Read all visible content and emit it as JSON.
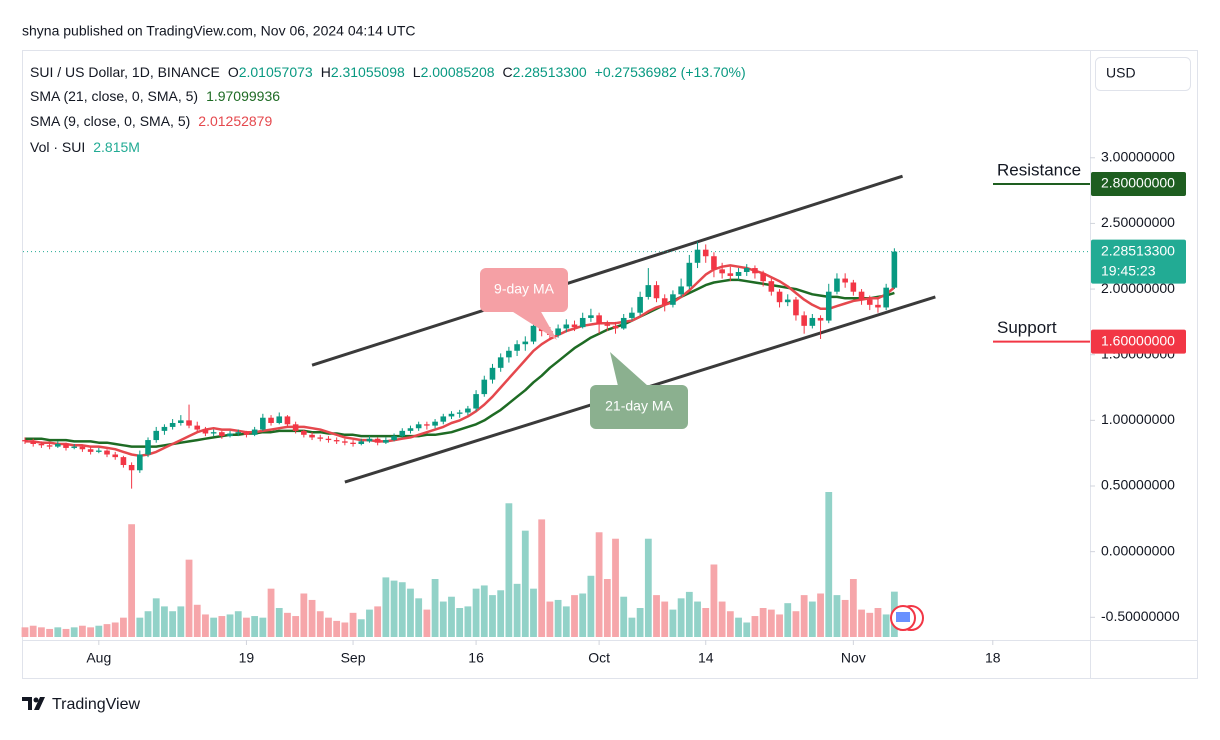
{
  "header": "shyna published on TradingView.com, Nov 06, 2024 04:14 UTC",
  "footer": "TradingView",
  "currency_button": "USD",
  "legend": {
    "symbol": "SUI / US Dollar, 1D, BINANCE",
    "ohlc": [
      {
        "prefix": "O",
        "value": "2.01057073"
      },
      {
        "prefix": "H",
        "value": "2.31055098"
      },
      {
        "prefix": "L",
        "value": "2.00085208"
      },
      {
        "prefix": "C",
        "value": "2.28513300"
      }
    ],
    "change": "+0.27536982 (+13.70%)"
  },
  "chart_data": {
    "type": "candlestick",
    "up_color": "#089981",
    "down_color": "#f23645",
    "x": [
      "Jul 23",
      "Jul 24",
      "Jul 25",
      "Jul 26",
      "Jul 27",
      "Jul 28",
      "Jul 29",
      "Jul 30",
      "Jul 31",
      "Aug 1",
      "Aug 2",
      "Aug 3",
      "Aug 4",
      "Aug 5",
      "Aug 6",
      "Aug 7",
      "Aug 8",
      "Aug 9",
      "Aug 10",
      "Aug 11",
      "Aug 12",
      "Aug 13",
      "Aug 14",
      "Aug 15",
      "Aug 16",
      "Aug 17",
      "Aug 18",
      "Aug 19",
      "Aug 20",
      "Aug 21",
      "Aug 22",
      "Aug 23",
      "Aug 24",
      "Aug 25",
      "Aug 26",
      "Aug 27",
      "Aug 28",
      "Aug 29",
      "Aug 30",
      "Aug 31",
      "Sep 1",
      "Sep 2",
      "Sep 3",
      "Sep 4",
      "Sep 5",
      "Sep 6",
      "Sep 7",
      "Sep 8",
      "Sep 9",
      "Sep 10",
      "Sep 11",
      "Sep 12",
      "Sep 13",
      "Sep 14",
      "Sep 15",
      "Sep 16",
      "Sep 17",
      "Sep 18",
      "Sep 19",
      "Sep 20",
      "Sep 21",
      "Sep 22",
      "Sep 23",
      "Sep 24",
      "Sep 25",
      "Sep 26",
      "Sep 27",
      "Sep 28",
      "Sep 29",
      "Sep 30",
      "Oct 1",
      "Oct 2",
      "Oct 3",
      "Oct 4",
      "Oct 5",
      "Oct 6",
      "Oct 7",
      "Oct 8",
      "Oct 9",
      "Oct 10",
      "Oct 11",
      "Oct 12",
      "Oct 13",
      "Oct 14",
      "Oct 15",
      "Oct 16",
      "Oct 17",
      "Oct 18",
      "Oct 19",
      "Oct 20",
      "Oct 21",
      "Oct 22",
      "Oct 23",
      "Oct 24",
      "Oct 25",
      "Oct 26",
      "Oct 27",
      "Oct 28",
      "Oct 29",
      "Oct 30",
      "Oct 31",
      "Nov 1",
      "Nov 2",
      "Nov 3",
      "Nov 4",
      "Nov 5",
      "Nov 6"
    ],
    "open": [
      0.85,
      0.84,
      0.82,
      0.81,
      0.8,
      0.82,
      0.79,
      0.8,
      0.78,
      0.76,
      0.77,
      0.74,
      0.72,
      0.66,
      0.62,
      0.74,
      0.85,
      0.92,
      0.95,
      0.98,
      1.0,
      0.96,
      0.93,
      0.9,
      0.91,
      0.88,
      0.9,
      0.91,
      0.89,
      0.93,
      1.02,
      0.98,
      1.03,
      0.97,
      0.92,
      0.89,
      0.87,
      0.86,
      0.85,
      0.84,
      0.83,
      0.82,
      0.84,
      0.86,
      0.83,
      0.85,
      0.88,
      0.92,
      0.94,
      0.97,
      0.96,
      0.99,
      1.03,
      1.05,
      1.06,
      1.09,
      1.2,
      1.31,
      1.4,
      1.48,
      1.53,
      1.58,
      1.6,
      1.72,
      1.68,
      1.65,
      1.7,
      1.73,
      1.71,
      1.78,
      1.8,
      1.73,
      1.72,
      1.7,
      1.78,
      1.82,
      1.94,
      2.03,
      1.93,
      1.88,
      1.96,
      2.02,
      2.2,
      2.3,
      2.25,
      2.15,
      2.12,
      2.1,
      2.13,
      2.16,
      2.12,
      2.06,
      1.98,
      1.9,
      1.92,
      1.8,
      1.72,
      1.78,
      1.76,
      1.98,
      2.08,
      2.05,
      1.98,
      1.92,
      1.88,
      1.86,
      2.01057073
    ],
    "high": [
      0.87,
      0.86,
      0.84,
      0.83,
      0.84,
      0.83,
      0.82,
      0.81,
      0.8,
      0.79,
      0.78,
      0.76,
      0.73,
      0.68,
      0.77,
      0.87,
      0.95,
      0.97,
      1.01,
      1.04,
      1.12,
      0.99,
      0.95,
      0.93,
      0.92,
      0.92,
      0.93,
      0.92,
      0.95,
      1.05,
      1.04,
      1.06,
      1.04,
      0.99,
      0.93,
      0.91,
      0.89,
      0.88,
      0.87,
      0.86,
      0.85,
      0.86,
      0.88,
      0.87,
      0.87,
      0.9,
      0.94,
      0.96,
      0.99,
      0.99,
      1.01,
      1.05,
      1.07,
      1.08,
      1.11,
      1.23,
      1.34,
      1.43,
      1.51,
      1.56,
      1.61,
      1.64,
      1.76,
      1.75,
      1.71,
      1.73,
      1.77,
      1.76,
      1.82,
      1.85,
      1.82,
      1.76,
      1.75,
      1.81,
      1.86,
      1.98,
      2.16,
      2.06,
      1.96,
      1.99,
      2.08,
      2.26,
      2.36,
      2.34,
      2.28,
      2.2,
      2.17,
      2.16,
      2.19,
      2.18,
      2.14,
      2.08,
      2.0,
      1.96,
      1.94,
      1.83,
      1.81,
      1.8,
      2.04,
      2.12,
      2.12,
      2.07,
      2.0,
      1.95,
      1.93,
      2.04,
      2.31055098
    ],
    "low": [
      0.82,
      0.8,
      0.79,
      0.78,
      0.79,
      0.77,
      0.78,
      0.76,
      0.74,
      0.75,
      0.72,
      0.7,
      0.64,
      0.48,
      0.6,
      0.72,
      0.83,
      0.89,
      0.93,
      0.96,
      0.94,
      0.91,
      0.88,
      0.88,
      0.86,
      0.87,
      0.88,
      0.87,
      0.88,
      0.92,
      0.96,
      0.97,
      0.95,
      0.9,
      0.87,
      0.85,
      0.84,
      0.83,
      0.82,
      0.81,
      0.8,
      0.81,
      0.83,
      0.81,
      0.82,
      0.84,
      0.87,
      0.9,
      0.92,
      0.93,
      0.94,
      0.97,
      1.01,
      1.02,
      1.04,
      1.07,
      1.18,
      1.28,
      1.37,
      1.44,
      1.49,
      1.53,
      1.58,
      1.64,
      1.61,
      1.63,
      1.67,
      1.68,
      1.7,
      1.75,
      1.66,
      1.68,
      1.66,
      1.69,
      1.76,
      1.8,
      1.92,
      1.9,
      1.83,
      1.86,
      1.94,
      2.0,
      2.16,
      2.2,
      2.09,
      2.08,
      2.06,
      2.07,
      2.1,
      2.08,
      2.02,
      1.95,
      1.86,
      1.87,
      1.76,
      1.66,
      1.7,
      1.62,
      1.74,
      1.96,
      2.01,
      1.95,
      1.88,
      1.84,
      1.82,
      1.84,
      2.00085208
    ],
    "close": [
      0.84,
      0.82,
      0.81,
      0.8,
      0.82,
      0.79,
      0.8,
      0.78,
      0.76,
      0.77,
      0.74,
      0.72,
      0.66,
      0.62,
      0.74,
      0.85,
      0.92,
      0.95,
      0.98,
      1.0,
      0.96,
      0.93,
      0.9,
      0.91,
      0.88,
      0.9,
      0.91,
      0.89,
      0.93,
      1.02,
      0.98,
      1.03,
      0.97,
      0.92,
      0.89,
      0.87,
      0.86,
      0.85,
      0.84,
      0.83,
      0.82,
      0.84,
      0.86,
      0.83,
      0.85,
      0.88,
      0.92,
      0.94,
      0.97,
      0.96,
      0.99,
      1.03,
      1.05,
      1.06,
      1.09,
      1.2,
      1.31,
      1.4,
      1.48,
      1.53,
      1.58,
      1.6,
      1.72,
      1.68,
      1.65,
      1.7,
      1.73,
      1.71,
      1.78,
      1.8,
      1.73,
      1.72,
      1.7,
      1.78,
      1.82,
      1.94,
      2.03,
      1.93,
      1.88,
      1.96,
      2.02,
      2.2,
      2.3,
      2.25,
      2.15,
      2.12,
      2.1,
      2.13,
      2.16,
      2.12,
      2.06,
      1.98,
      1.9,
      1.92,
      1.8,
      1.72,
      1.78,
      1.76,
      1.98,
      2.08,
      2.05,
      1.98,
      1.92,
      1.88,
      1.86,
      2.01057073,
      2.285133
    ],
    "series": [
      {
        "name": "SMA (21, close, 0, SMA, 5)",
        "last_label": "1.97099936",
        "color": "#1e6b24",
        "values": [
          0.86,
          0.86,
          0.86,
          0.85,
          0.85,
          0.85,
          0.84,
          0.84,
          0.84,
          0.83,
          0.83,
          0.82,
          0.81,
          0.8,
          0.8,
          0.8,
          0.8,
          0.81,
          0.82,
          0.83,
          0.84,
          0.85,
          0.86,
          0.87,
          0.88,
          0.89,
          0.89,
          0.9,
          0.9,
          0.91,
          0.91,
          0.92,
          0.92,
          0.92,
          0.92,
          0.91,
          0.91,
          0.9,
          0.9,
          0.89,
          0.89,
          0.88,
          0.88,
          0.88,
          0.88,
          0.88,
          0.88,
          0.88,
          0.88,
          0.89,
          0.89,
          0.9,
          0.91,
          0.93,
          0.95,
          0.97,
          1.0,
          1.04,
          1.08,
          1.13,
          1.18,
          1.23,
          1.29,
          1.34,
          1.4,
          1.45,
          1.5,
          1.55,
          1.59,
          1.63,
          1.66,
          1.69,
          1.71,
          1.73,
          1.76,
          1.79,
          1.82,
          1.85,
          1.88,
          1.91,
          1.94,
          1.97,
          2.0,
          2.03,
          2.05,
          2.06,
          2.07,
          2.07,
          2.06,
          2.05,
          2.04,
          2.03,
          2.02,
          2.01,
          2.0,
          1.98,
          1.96,
          1.95,
          1.94,
          1.94,
          1.93,
          1.93,
          1.93,
          1.93,
          1.94,
          1.95,
          1.97099936
        ]
      },
      {
        "name": "SMA (9, close, 0, SMA, 5)",
        "last_label": "2.01252879",
        "color": "#e5484d",
        "values": [
          0.84,
          0.84,
          0.83,
          0.83,
          0.82,
          0.82,
          0.81,
          0.81,
          0.8,
          0.8,
          0.79,
          0.78,
          0.76,
          0.74,
          0.73,
          0.74,
          0.76,
          0.79,
          0.82,
          0.85,
          0.88,
          0.91,
          0.93,
          0.94,
          0.93,
          0.93,
          0.92,
          0.91,
          0.91,
          0.92,
          0.93,
          0.94,
          0.95,
          0.95,
          0.95,
          0.94,
          0.93,
          0.91,
          0.89,
          0.87,
          0.86,
          0.85,
          0.85,
          0.84,
          0.84,
          0.85,
          0.86,
          0.87,
          0.89,
          0.91,
          0.93,
          0.95,
          0.98,
          1.0,
          1.03,
          1.07,
          1.12,
          1.18,
          1.25,
          1.32,
          1.39,
          1.46,
          1.53,
          1.58,
          1.62,
          1.65,
          1.68,
          1.7,
          1.72,
          1.73,
          1.74,
          1.74,
          1.74,
          1.75,
          1.76,
          1.79,
          1.83,
          1.86,
          1.88,
          1.9,
          1.94,
          1.99,
          2.05,
          2.11,
          2.15,
          2.17,
          2.18,
          2.17,
          2.16,
          2.14,
          2.12,
          2.09,
          2.06,
          2.02,
          1.97,
          1.92,
          1.88,
          1.85,
          1.85,
          1.87,
          1.89,
          1.91,
          1.92,
          1.93,
          1.93,
          1.96,
          2.01252879
        ]
      }
    ],
    "volume": {
      "name": "Vol · SUI",
      "last_label": "2.815M",
      "up_color": "#92d2c8",
      "down_color": "#f6a6aa",
      "values": [
        0.6,
        0.7,
        0.6,
        0.5,
        0.6,
        0.5,
        0.6,
        0.7,
        0.6,
        0.7,
        0.8,
        0.9,
        1.2,
        7.0,
        1.2,
        1.6,
        2.4,
        1.9,
        1.6,
        1.9,
        4.8,
        2.0,
        1.4,
        1.2,
        1.3,
        1.4,
        1.6,
        1.2,
        1.3,
        1.2,
        3.0,
        1.8,
        1.5,
        1.3,
        2.7,
        2.3,
        1.6,
        1.2,
        1.0,
        0.9,
        1.5,
        1.1,
        1.7,
        1.9,
        3.7,
        3.5,
        3.4,
        3.0,
        2.4,
        1.7,
        3.6,
        2.2,
        2.5,
        1.8,
        1.9,
        3.0,
        3.2,
        2.6,
        2.9,
        8.3,
        3.3,
        6.6,
        3.0,
        7.3,
        2.2,
        2.3,
        1.9,
        2.6,
        2.7,
        3.8,
        6.5,
        3.6,
        6.1,
        2.5,
        1.2,
        1.8,
        6.1,
        2.6,
        2.2,
        1.7,
        2.4,
        2.8,
        2.2,
        1.8,
        4.5,
        2.2,
        1.6,
        1.2,
        0.9,
        1.3,
        1.8,
        1.7,
        1.4,
        2.1,
        1.6,
        2.6,
        2.2,
        2.7,
        9.0,
        2.6,
        2.3,
        3.6,
        1.7,
        1.5,
        1.8,
        1.4,
        2.815
      ]
    },
    "last_price": {
      "label": "2.28513300",
      "countdown": "19:45:23",
      "color": "#22ab94"
    },
    "levels": [
      {
        "name": "Resistance",
        "value": 2.8,
        "label": "2.80000000",
        "color": "#1e5e20"
      },
      {
        "name": "Support",
        "value": 1.6,
        "label": "1.60000000",
        "color": "#f23645"
      }
    ],
    "trendlines": [
      {
        "x": [
          "Aug 27",
          "Nov 7"
        ],
        "y": [
          1.42,
          2.86
        ]
      },
      {
        "x": [
          "Aug 31",
          "Nov 11"
        ],
        "y": [
          0.53,
          1.94
        ]
      }
    ],
    "annotations": [
      {
        "text": "9-day MA",
        "color": "#f5a0a5"
      },
      {
        "text": "21-day MA",
        "color": "#8bb08f"
      }
    ],
    "xlim": [
      "Jul 23",
      "Nov 29"
    ],
    "xticks": [
      {
        "value": "Aug 1",
        "label": "Aug"
      },
      {
        "value": "Aug 19",
        "label": "19"
      },
      {
        "value": "Sep 1",
        "label": "Sep"
      },
      {
        "value": "Sep 16",
        "label": "16"
      },
      {
        "value": "Oct 1",
        "label": "Oct"
      },
      {
        "value": "Oct 14",
        "label": "14"
      },
      {
        "value": "Nov 1",
        "label": "Nov"
      },
      {
        "value": "Nov 18",
        "label": "18"
      }
    ],
    "ylim": [
      -0.65,
      3.44
    ],
    "yticks": [
      {
        "value": 3,
        "label": "3.00000000"
      },
      {
        "value": 2.5,
        "label": "2.50000000"
      },
      {
        "value": 2,
        "label": "2.00000000"
      },
      {
        "value": 1.5,
        "label": "1.50000000"
      },
      {
        "value": 1,
        "label": "1.00000000"
      },
      {
        "value": 0.5,
        "label": "0.50000000"
      },
      {
        "value": 0,
        "label": "0.00000000"
      },
      {
        "value": -0.5,
        "label": "-0.50000000"
      }
    ]
  }
}
